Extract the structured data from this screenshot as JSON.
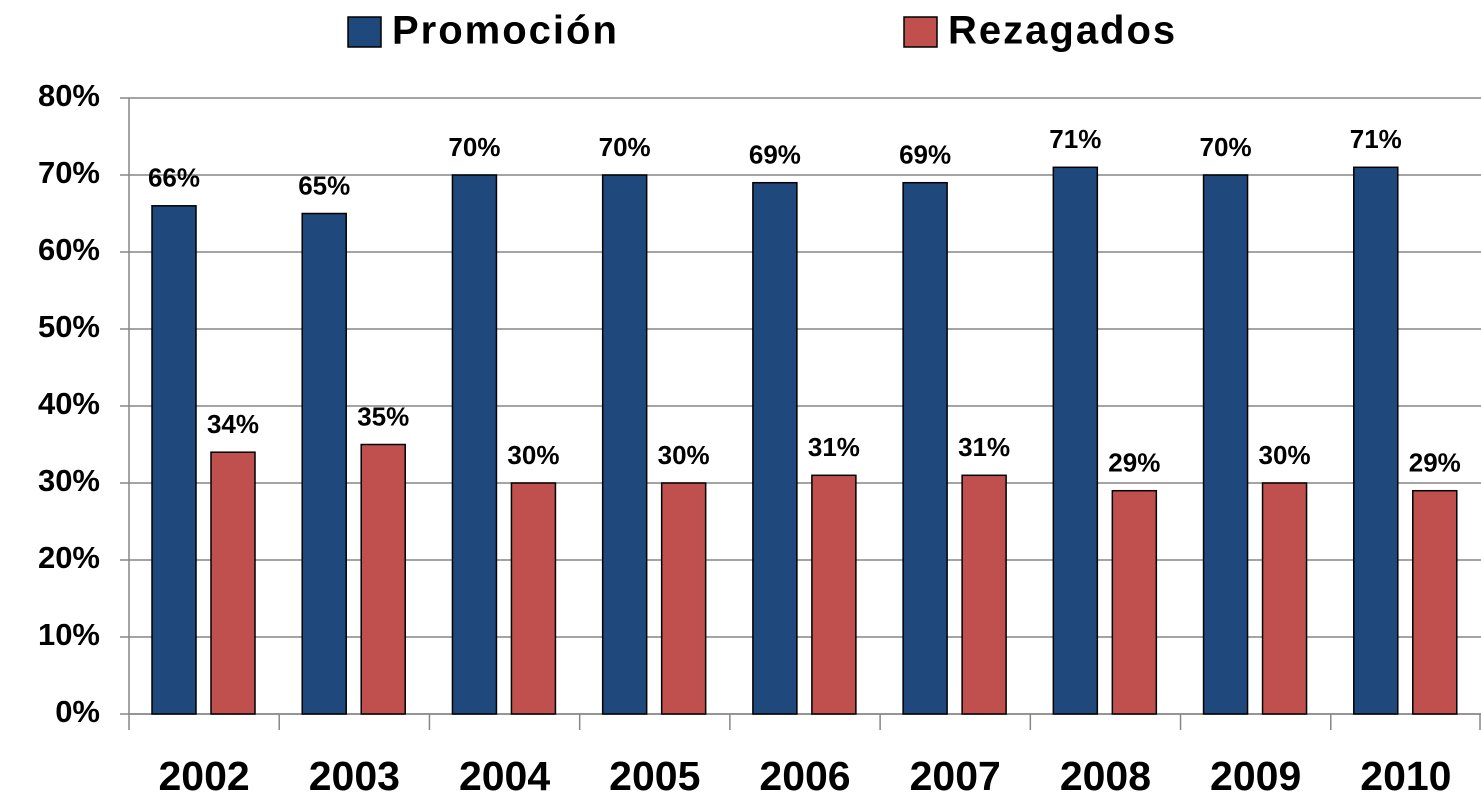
{
  "chart_data": {
    "type": "grouped-bar",
    "categories": [
      "2002",
      "2003",
      "2004",
      "2005",
      "2006",
      "2007",
      "2008",
      "2009",
      "2010"
    ],
    "series": [
      {
        "name": "Promoción",
        "color": "#1f497d",
        "values": [
          66,
          65,
          70,
          70,
          69,
          69,
          71,
          70,
          71
        ],
        "value_labels": [
          "66%",
          "65%",
          "70%",
          "70%",
          "69%",
          "69%",
          "71%",
          "70%",
          "71%"
        ]
      },
      {
        "name": "Rezagados",
        "color": "#c0504d",
        "values": [
          34,
          35,
          30,
          30,
          31,
          31,
          29,
          30,
          29
        ],
        "value_labels": [
          "34%",
          "35%",
          "30%",
          "30%",
          "31%",
          "31%",
          "29%",
          "30%",
          "29%"
        ]
      }
    ],
    "ylim": [
      0,
      80
    ],
    "yticks": [
      {
        "value": 0,
        "label": "0%"
      },
      {
        "value": 10,
        "label": "10%"
      },
      {
        "value": 20,
        "label": "20%"
      },
      {
        "value": 30,
        "label": "30%"
      },
      {
        "value": 40,
        "label": "40%"
      },
      {
        "value": 50,
        "label": "50%"
      },
      {
        "value": 60,
        "label": "60%"
      },
      {
        "value": 70,
        "label": "70%"
      },
      {
        "value": 80,
        "label": "80%"
      }
    ],
    "grid": true,
    "legend": "top"
  }
}
